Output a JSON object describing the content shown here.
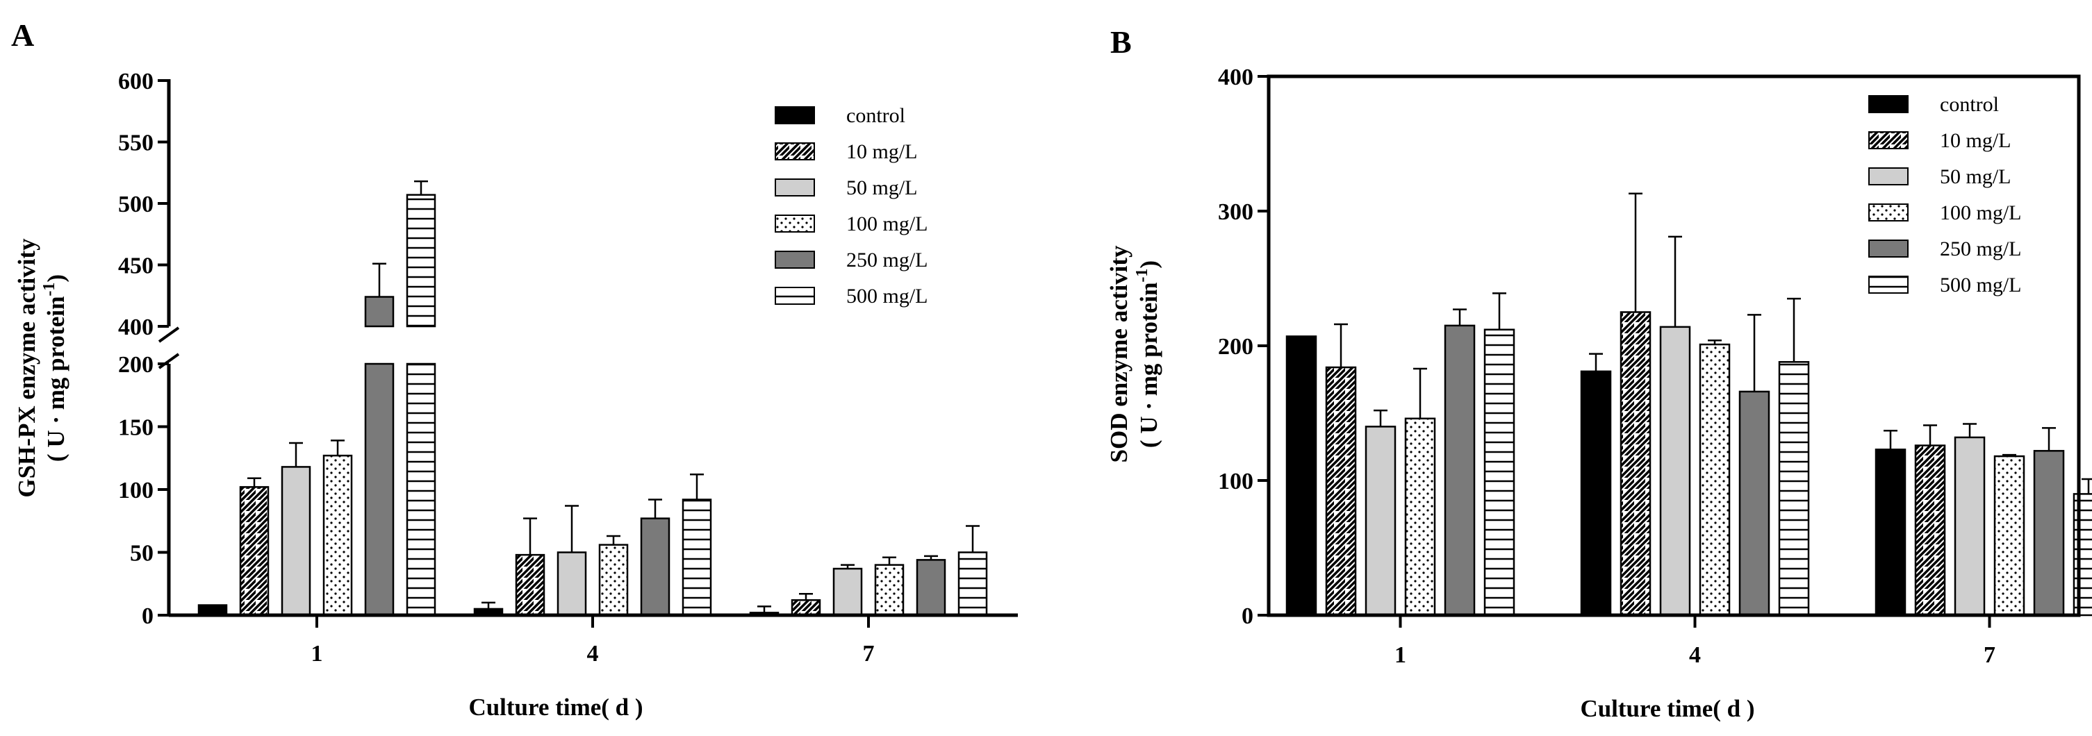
{
  "chart_data": [
    {
      "panel": "A",
      "type": "bar",
      "title": "",
      "ylabel_line1": "GSH-PX enzyme activity",
      "ylabel_line2_prefix": "( U · mg protein",
      "ylabel_sup": "-1",
      "ylabel_line2_suffix": ")",
      "xlabel": "Culture time( d )",
      "categories": [
        "1",
        "4",
        "7"
      ],
      "axis_break": {
        "lower_range": [
          0,
          200
        ],
        "upper_range": [
          400,
          600
        ]
      },
      "yticks_lower": [
        0,
        50,
        100,
        150,
        200
      ],
      "yticks_upper": [
        400,
        450,
        500,
        550,
        600
      ],
      "series": [
        {
          "name": "control",
          "values": [
            8,
            5,
            2
          ],
          "errors": [
            0,
            5,
            5
          ]
        },
        {
          "name": "10 mg/L",
          "values": [
            102,
            48,
            12
          ],
          "errors": [
            7,
            29,
            5
          ]
        },
        {
          "name": "50 mg/L",
          "values": [
            118,
            50,
            37
          ],
          "errors": [
            19,
            37,
            3
          ]
        },
        {
          "name": "100 mg/L",
          "values": [
            127,
            56,
            40
          ],
          "errors": [
            12,
            7,
            6
          ]
        },
        {
          "name": "250 mg/L",
          "values": [
            424,
            77,
            44
          ],
          "errors": [
            27,
            15,
            3
          ]
        },
        {
          "name": "500 mg/L",
          "values": [
            507,
            92,
            50
          ],
          "errors": [
            11,
            20,
            21
          ]
        }
      ]
    },
    {
      "panel": "B",
      "type": "bar",
      "title": "",
      "ylabel_line1": "SOD enzyme activity",
      "ylabel_line2_prefix": "( U · mg protein",
      "ylabel_sup": "-1",
      "ylabel_line2_suffix": ")",
      "xlabel": "Culture time( d )",
      "categories": [
        "1",
        "4",
        "7"
      ],
      "ylim": [
        0,
        400
      ],
      "yticks": [
        0,
        100,
        200,
        300,
        400
      ],
      "series": [
        {
          "name": "control",
          "values": [
            207,
            181,
            123
          ],
          "errors": [
            0,
            13,
            14
          ]
        },
        {
          "name": "10 mg/L",
          "values": [
            184,
            225,
            126
          ],
          "errors": [
            32,
            88,
            15
          ]
        },
        {
          "name": "50 mg/L",
          "values": [
            140,
            214,
            132
          ],
          "errors": [
            12,
            67,
            10
          ]
        },
        {
          "name": "100 mg/L",
          "values": [
            146,
            201,
            118
          ],
          "errors": [
            37,
            3,
            1
          ]
        },
        {
          "name": "250 mg/L",
          "values": [
            215,
            166,
            122
          ],
          "errors": [
            12,
            57,
            17
          ]
        },
        {
          "name": "500 mg/L",
          "values": [
            212,
            188,
            90
          ],
          "errors": [
            27,
            47,
            11
          ]
        }
      ]
    }
  ],
  "colors": {
    "control": "#000000",
    "light_gray": "#cfcfcf",
    "dark_gray": "#7a7a7a",
    "stroke": "#000000"
  }
}
